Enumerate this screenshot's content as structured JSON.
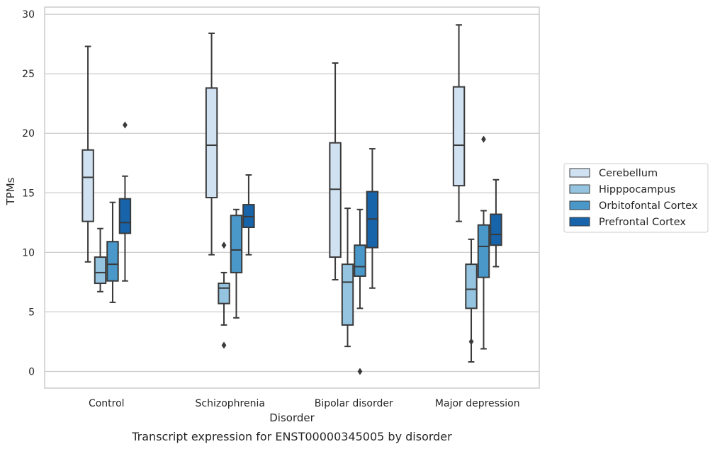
{
  "chart_data": {
    "type": "box",
    "title": "",
    "caption": "Transcript expression for ENST00000345005 by disorder",
    "xlabel": "Disorder",
    "ylabel": "TPMs",
    "ylim": [
      -1.4,
      30.6
    ],
    "yticks": [
      0,
      5,
      10,
      15,
      20,
      25,
      30
    ],
    "grid": true,
    "legend_position": "right",
    "categories": [
      "Control",
      "Schizophrenia",
      "Bipolar disorder",
      "Major depression"
    ],
    "series": [
      {
        "name": "Cerebellum",
        "color": "#d0e1f2",
        "boxes": [
          {
            "whislo": 9.2,
            "q1": 12.6,
            "med": 16.3,
            "q3": 18.6,
            "whishi": 27.3,
            "fliers": []
          },
          {
            "whislo": 9.8,
            "q1": 14.6,
            "med": 19.0,
            "q3": 23.8,
            "whishi": 28.4,
            "fliers": []
          },
          {
            "whislo": 7.7,
            "q1": 9.6,
            "med": 15.3,
            "q3": 19.2,
            "whishi": 25.9,
            "fliers": []
          },
          {
            "whislo": 12.6,
            "q1": 15.6,
            "med": 19.0,
            "q3": 23.9,
            "whishi": 29.1,
            "fliers": []
          }
        ]
      },
      {
        "name": "Hipppocampus",
        "color": "#94c4df",
        "boxes": [
          {
            "whislo": 6.7,
            "q1": 7.4,
            "med": 8.3,
            "q3": 9.6,
            "whishi": 12.0,
            "fliers": []
          },
          {
            "whislo": 3.9,
            "q1": 5.7,
            "med": 7.0,
            "q3": 7.4,
            "whishi": 8.3,
            "fliers": [
              10.6,
              2.2
            ]
          },
          {
            "whislo": 2.1,
            "q1": 3.9,
            "med": 7.5,
            "q3": 9.0,
            "whishi": 13.7,
            "fliers": []
          },
          {
            "whislo": 0.8,
            "q1": 5.3,
            "med": 6.9,
            "q3": 9.0,
            "whishi": 11.1,
            "fliers": [
              2.5
            ]
          }
        ]
      },
      {
        "name": "Orbitofontal Cortex",
        "color": "#4a98c9",
        "boxes": [
          {
            "whislo": 5.8,
            "q1": 7.6,
            "med": 9.0,
            "q3": 10.9,
            "whishi": 14.2,
            "fliers": []
          },
          {
            "whislo": 4.5,
            "q1": 8.3,
            "med": 10.2,
            "q3": 13.1,
            "whishi": 13.6,
            "fliers": []
          },
          {
            "whislo": 5.3,
            "q1": 8.0,
            "med": 8.8,
            "q3": 10.6,
            "whishi": 13.6,
            "fliers": [
              0.0
            ]
          },
          {
            "whislo": 1.9,
            "q1": 7.9,
            "med": 10.5,
            "q3": 12.3,
            "whishi": 13.5,
            "fliers": [
              19.5
            ]
          }
        ]
      },
      {
        "name": "Prefrontal Cortex",
        "color": "#1764ab",
        "boxes": [
          {
            "whislo": 7.6,
            "q1": 11.6,
            "med": 12.5,
            "q3": 14.5,
            "whishi": 16.4,
            "fliers": [
              20.7
            ]
          },
          {
            "whislo": 9.8,
            "q1": 12.1,
            "med": 13.0,
            "q3": 14.0,
            "whishi": 16.5,
            "fliers": []
          },
          {
            "whislo": 7.0,
            "q1": 10.4,
            "med": 12.8,
            "q3": 15.1,
            "whishi": 18.7,
            "fliers": []
          },
          {
            "whislo": 8.8,
            "q1": 10.6,
            "med": 11.5,
            "q3": 13.2,
            "whishi": 16.1,
            "fliers": []
          }
        ]
      }
    ]
  }
}
